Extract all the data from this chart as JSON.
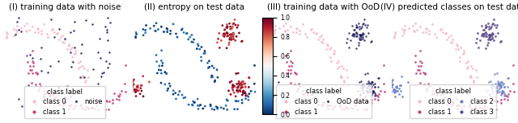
{
  "title1": "(I) training data with noise",
  "title2": "(II) entropy on test data",
  "title3": "(III) training data with OoD",
  "title4": "(IV) predicted classes on test data",
  "color_class0": "#f4b8c8",
  "color_class1": "#c0427a",
  "color_noise": "#1a1a5e",
  "color_ood": "#1a1a5e",
  "color_class2": "#6a7fc4",
  "color_class3": "#5a4a8a",
  "colorbar_min": 0.0,
  "colorbar_max": 1.0,
  "legend1_title": "class label",
  "legend1_entries": [
    "class 0",
    "class 1",
    "noise"
  ],
  "legend3_title": "class label",
  "legend3_entries": [
    "class 0",
    "class 1",
    "OoD data"
  ],
  "legend4_title": "class label",
  "legend4_entries": [
    "class 0",
    "class 1",
    "class 2",
    "class 3"
  ],
  "fig_bg": "#ffffff",
  "title_fontsize": 7.5,
  "legend_fontsize": 6.0,
  "seed": 42
}
